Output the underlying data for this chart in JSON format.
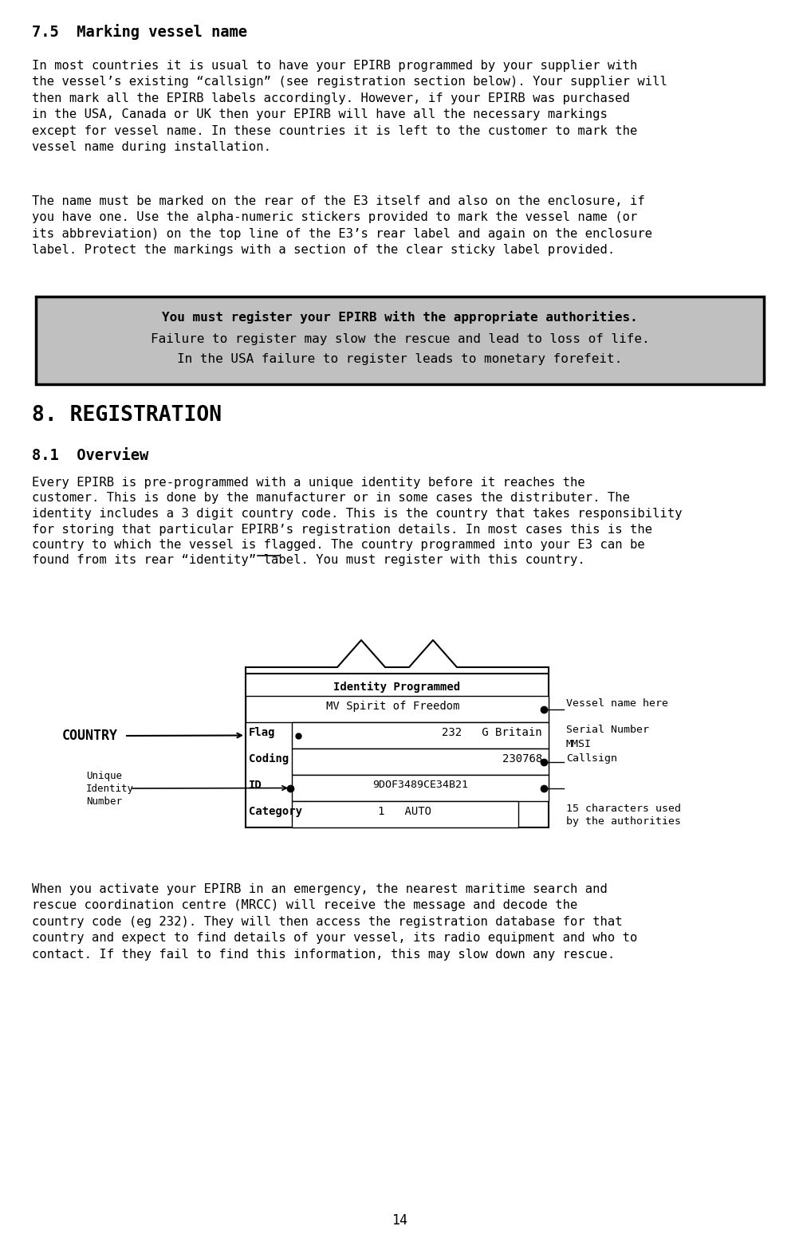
{
  "title_section": "7.5  Marking vessel name",
  "para1": "In most countries it is usual to have your EPIRB programmed by your supplier with\nthe vessel’s existing “callsign” (see registration section below). Your supplier will\nthen mark all the EPIRB labels accordingly. However, if your EPIRB was purchased\nin the USA, Canada or UK then your EPIRB will have all the necessary markings\nexcept for vessel name. In these countries it is left to the customer to mark the\nvessel name during installation.",
  "para2": "The name must be marked on the rear of the E3 itself and also on the enclosure, if\nyou have one. Use the alpha-numeric stickers provided to mark the vessel name (or\nits abbreviation) on the top line of the E3’s rear label and again on the enclosure\nlabel. Protect the markings with a section of the clear sticky label provided.",
  "warning_bold": "You must register your EPIRB with the appropriate authorities.",
  "warning_line2": "Failure to register may slow the rescue and lead to loss of life.",
  "warning_line3": "In the USA failure to register leads to monetary forefeit.",
  "section_title": "8. REGISTRATION",
  "subsection_title": "8.1  Overview",
  "para3_lines": [
    "Every EPIRB is pre-programmed with a unique identity before it reaches the",
    "customer. This is done by the manufacturer or in some cases the distributer. The",
    "identity includes a 3 digit country code. This is the country that takes responsibility",
    "for storing that particular EPIRB’s registration details. In most cases this is the",
    "country to which the vessel is flagged. The country programmed into your E3 can be",
    "found from its rear “identity” label. You must register with this country."
  ],
  "para3_must_line": 5,
  "para3_must_prefix": "found from its rear “identity” label. You ",
  "para3_must_word": "must",
  "para4": "When you activate your EPIRB in an emergency, the nearest maritime search and\nrescue coordination centre (MRCC) will receive the message and decode the\ncountry code (eg 232). They will then access the registration database for that\ncountry and expect to find details of your vessel, its radio equipment and who to\ncontact. If they fail to find this information, this may slow down any rescue.",
  "page_number": "14",
  "diagram": {
    "identity_programmed": "Identity Programmed",
    "mv_spirit": "MV Spirit of Freedom",
    "flag_label": "Flag",
    "flag_value": "232   G Britain",
    "coding_label": "Coding",
    "coding_value": "230768",
    "id_label": "ID",
    "id_value": "9DOF3489CE34B21",
    "category_label": "Category",
    "category_value": "1   AUTO",
    "country_label": "COUNTRY",
    "vessel_name_here": "Vessel name here",
    "serial_number": "Serial Number",
    "mmsi": "MMSI",
    "callsign": "Callsign",
    "unique_identity": "Unique\nIdentity\nNumber",
    "fifteen_chars": "15 characters used\nby the authorities"
  },
  "bg_color": "#ffffff",
  "warning_bg": "#c0c0c0",
  "text_color": "#000000"
}
